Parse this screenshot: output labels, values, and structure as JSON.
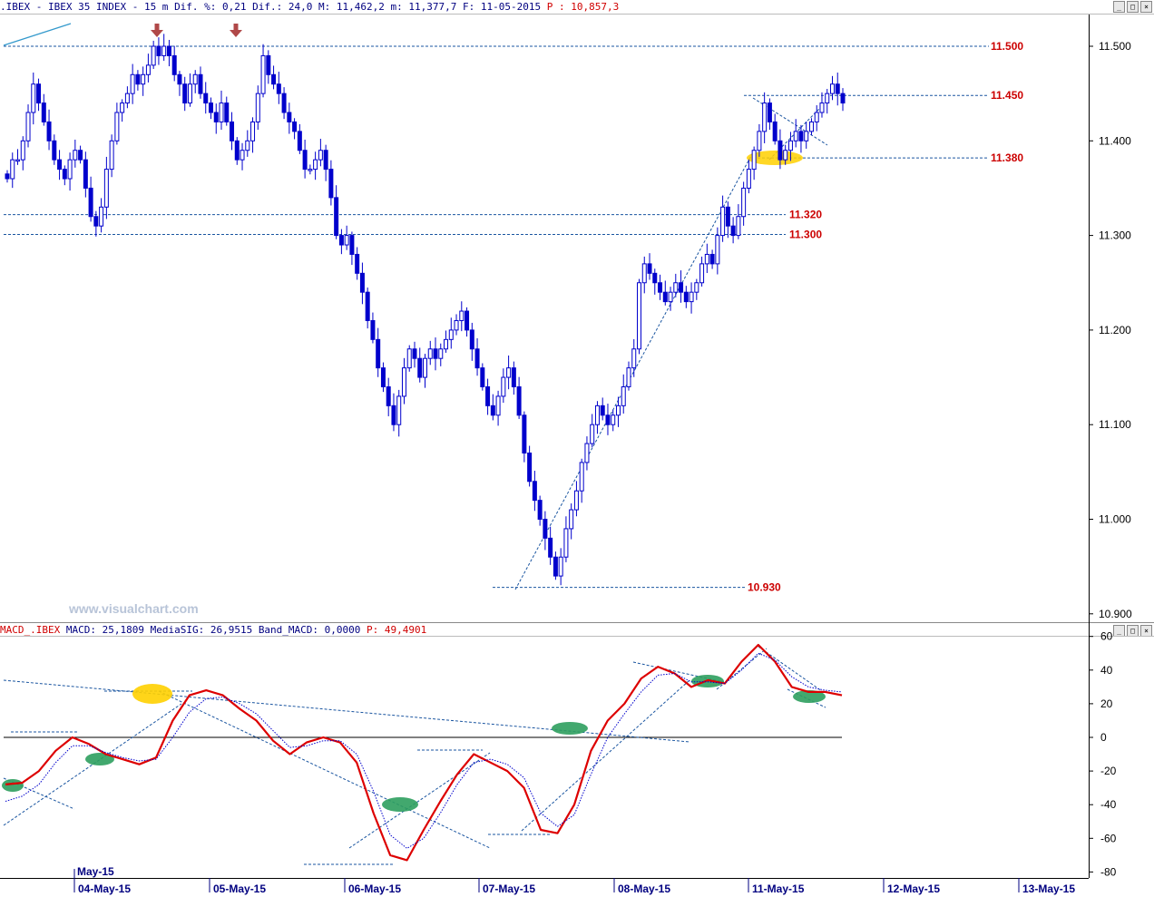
{
  "header": {
    "prefix": ".IBEX - IBEX 35 INDEX -  15 m",
    "dif_pct": "Dif. %: 0,21",
    "dif": "Dif.: 24,0",
    "max": "M: 11,462,2",
    "min": "m: 11,377,7",
    "date": "F: 11-05-2015",
    "p_label": "P : 10,857,3"
  },
  "macd_header": {
    "name": "MACD_.IBEX",
    "macd_label": "MACD:",
    "macd_value": "25,1809",
    "sig_label": "MediaSIG:",
    "sig_value": "26,9515",
    "band_label": "Band_MACD:",
    "band_value": "0,0000",
    "p_label": "P: 49,4901"
  },
  "watermark": "www.visualchart.com",
  "colors": {
    "candle": "#0000cc",
    "macd": "#dd0000",
    "signal": "#0000cc",
    "level_text": "#cc0000",
    "highlight_yellow": "#ffd000",
    "highlight_green": "#2e9e5e",
    "arrow": "#b04848"
  },
  "icons": [
    "down-arrow-icon",
    "minimize-icon",
    "maximize-icon",
    "close-icon"
  ],
  "chart_data": [
    {
      "type": "candlestick",
      "title": "IBEX 35 INDEX - 15 m",
      "y_ticks": [
        "11.500",
        "11.400",
        "11.300",
        "11.200",
        "11.100",
        "11.000",
        "10.900"
      ],
      "ylim": [
        10.895,
        11.53
      ],
      "levels": [
        {
          "label": "11.500",
          "value": 11.5
        },
        {
          "label": "11.450",
          "value": 11.448
        },
        {
          "label": "11.380",
          "value": 11.382
        },
        {
          "label": "11.320",
          "value": 11.322
        },
        {
          "label": "11.300",
          "value": 11.301
        },
        {
          "label": "10.930",
          "value": 10.928
        }
      ],
      "closes": [
        11.36,
        11.38,
        11.38,
        11.4,
        11.43,
        11.46,
        11.44,
        11.42,
        11.4,
        11.38,
        11.37,
        11.36,
        11.38,
        11.39,
        11.38,
        11.35,
        11.32,
        11.31,
        11.33,
        11.37,
        11.4,
        11.43,
        11.44,
        11.45,
        11.47,
        11.46,
        11.47,
        11.48,
        11.5,
        11.49,
        11.5,
        11.49,
        11.47,
        11.46,
        11.44,
        11.46,
        11.47,
        11.45,
        11.44,
        11.43,
        11.42,
        11.44,
        11.42,
        11.4,
        11.38,
        11.39,
        11.4,
        11.42,
        11.45,
        11.49,
        11.47,
        11.46,
        11.45,
        11.43,
        11.42,
        11.41,
        11.39,
        11.37,
        11.37,
        11.38,
        11.39,
        11.37,
        11.34,
        11.3,
        11.29,
        11.3,
        11.28,
        11.26,
        11.24,
        11.21,
        11.19,
        11.16,
        11.14,
        11.12,
        11.1,
        11.13,
        11.16,
        11.18,
        11.17,
        11.15,
        11.17,
        11.18,
        11.17,
        11.18,
        11.19,
        11.2,
        11.21,
        11.22,
        11.2,
        11.18,
        11.16,
        11.14,
        11.12,
        11.11,
        11.13,
        11.15,
        11.16,
        11.14,
        11.11,
        11.07,
        11.04,
        11.02,
        11.0,
        10.98,
        10.96,
        10.94,
        10.96,
        10.99,
        11.01,
        11.03,
        11.06,
        11.08,
        11.1,
        11.12,
        11.11,
        11.1,
        11.11,
        11.12,
        11.14,
        11.16,
        11.18,
        11.25,
        11.27,
        11.26,
        11.25,
        11.24,
        11.23,
        11.24,
        11.25,
        11.24,
        11.23,
        11.24,
        11.25,
        11.27,
        11.28,
        11.27,
        11.3,
        11.33,
        11.31,
        11.3,
        11.32,
        11.35,
        11.37,
        11.39,
        11.41,
        11.44,
        11.42,
        11.4,
        11.38,
        11.39,
        11.4,
        11.41,
        11.4,
        11.41,
        11.42,
        11.43,
        11.44,
        11.45,
        11.46,
        11.45,
        11.44
      ],
      "x_ticks": [
        "04-May-15",
        "05-May-15",
        "06-May-15",
        "07-May-15",
        "08-May-15",
        "11-May-15",
        "12-May-15",
        "13-May-15"
      ],
      "x_period_label": "May-15"
    },
    {
      "type": "line",
      "title": "MACD",
      "y_ticks": [
        "60",
        "40",
        "20",
        "0",
        "-20",
        "-40",
        "-60",
        "-80"
      ],
      "ylim": [
        -82,
        60
      ],
      "series": [
        {
          "name": "MACD",
          "values": [
            -28,
            -27,
            -20,
            -8,
            0,
            -4,
            -10,
            -13,
            -16,
            -12,
            10,
            25,
            28,
            25,
            17,
            10,
            -2,
            -10,
            -3,
            0,
            -3,
            -15,
            -45,
            -70,
            -73,
            -55,
            -38,
            -22,
            -10,
            -15,
            -20,
            -30,
            -55,
            -57,
            -40,
            -8,
            10,
            20,
            35,
            42,
            38,
            30,
            34,
            32,
            45,
            55,
            45,
            30,
            27,
            27,
            25
          ]
        },
        {
          "name": "MediaSIG",
          "values": [
            -38,
            -35,
            -28,
            -15,
            -5,
            -5,
            -9,
            -12,
            -14,
            -13,
            0,
            15,
            23,
            24,
            20,
            14,
            4,
            -6,
            -5,
            -2,
            -2,
            -10,
            -32,
            -58,
            -66,
            -60,
            -45,
            -28,
            -15,
            -13,
            -16,
            -24,
            -45,
            -53,
            -46,
            -22,
            0,
            14,
            27,
            37,
            38,
            33,
            33,
            32,
            40,
            50,
            46,
            36,
            30,
            28,
            27
          ]
        }
      ],
      "x_ticks": [
        "04-May-15",
        "05-May-15",
        "06-May-15",
        "07-May-15",
        "08-May-15",
        "11-May-15",
        "12-May-15",
        "13-May-15"
      ]
    }
  ]
}
